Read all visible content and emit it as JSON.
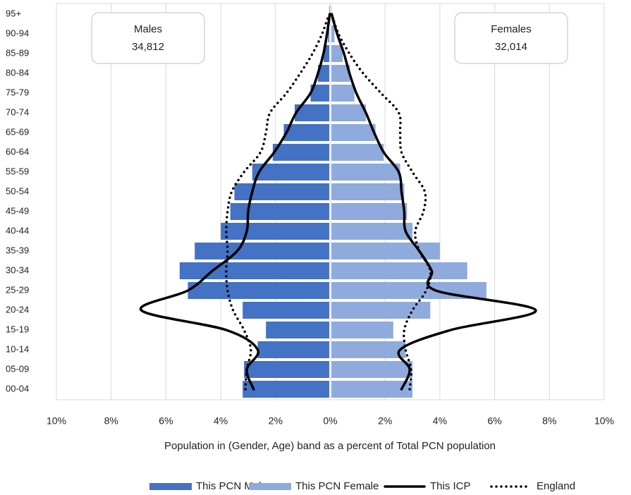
{
  "chart_data": {
    "type": "pyramid",
    "xlabel": "Population in (Gender, Age) band as a percent of Total PCN population",
    "categories": [
      "00-04",
      "05-09",
      "10-14",
      "15-19",
      "20-24",
      "25-29",
      "30-34",
      "35-39",
      "40-44",
      "45-49",
      "50-54",
      "55-59",
      "60-64",
      "65-69",
      "70-74",
      "75-79",
      "80-84",
      "85-89",
      "90-94",
      "95+"
    ],
    "series": [
      {
        "name": "This PCN Male",
        "kind": "bar",
        "color": "#4472c4",
        "values": [
          -3.2,
          -3.15,
          -2.65,
          -2.35,
          -3.2,
          -5.2,
          -5.5,
          -4.95,
          -4.0,
          -3.65,
          -3.5,
          -2.85,
          -2.1,
          -1.7,
          -1.3,
          -0.72,
          -0.45,
          -0.25,
          -0.08,
          -0.02
        ]
      },
      {
        "name": "This PCN Female",
        "kind": "bar",
        "color": "#8faadc",
        "values": [
          3.0,
          3.0,
          2.75,
          2.3,
          3.65,
          5.7,
          5.0,
          4.0,
          3.0,
          2.8,
          2.7,
          2.55,
          1.95,
          1.65,
          1.3,
          0.88,
          0.72,
          0.45,
          0.15,
          0.05
        ]
      },
      {
        "name": "This ICP",
        "kind": "line",
        "color": "#000000",
        "dash": "solid",
        "values": [
          -2.8,
          -3.05,
          -2.65,
          -3.8,
          -6.9,
          -5.2,
          -4.3,
          -3.4,
          -3.05,
          -3.0,
          -2.85,
          -2.6,
          -2.05,
          -1.6,
          -1.25,
          -0.72,
          -0.45,
          -0.25,
          -0.12,
          -0.02
        ],
        "values_right": [
          2.6,
          2.9,
          2.55,
          4.4,
          7.5,
          3.85,
          3.7,
          3.25,
          2.75,
          2.7,
          2.6,
          2.5,
          1.95,
          1.6,
          1.3,
          0.95,
          0.7,
          0.5,
          0.25,
          0.05
        ]
      },
      {
        "name": "England",
        "kind": "line",
        "color": "#000000",
        "dash": "dotted",
        "values": [
          -3.1,
          -3.05,
          -2.9,
          -3.15,
          -3.55,
          -3.75,
          -3.8,
          -3.75,
          -3.8,
          -3.75,
          -3.6,
          -3.15,
          -2.55,
          -2.35,
          -2.2,
          -1.6,
          -1.1,
          -0.65,
          -0.3,
          -0.05
        ],
        "values_right": [
          2.9,
          2.95,
          2.75,
          2.7,
          3.0,
          3.5,
          3.65,
          3.25,
          3.1,
          3.4,
          3.45,
          3.0,
          2.6,
          2.55,
          2.5,
          1.85,
          1.2,
          0.7,
          0.3,
          0.05
        ]
      }
    ],
    "xlim": [
      -10,
      10
    ],
    "xticks": [
      {
        "value": -10,
        "label": "10%"
      },
      {
        "value": -8,
        "label": "8%"
      },
      {
        "value": -6,
        "label": "6%"
      },
      {
        "value": -4,
        "label": "4%"
      },
      {
        "value": -2,
        "label": "2%"
      },
      {
        "value": 0,
        "label": "0%"
      },
      {
        "value": 2,
        "label": "2%"
      },
      {
        "value": 4,
        "label": "4%"
      },
      {
        "value": 6,
        "label": "6%"
      },
      {
        "value": 8,
        "label": "8%"
      },
      {
        "value": 10,
        "label": "10%"
      }
    ],
    "grid": true,
    "legend": "bottom",
    "annotations": [
      {
        "label": "Males",
        "total": "34,812"
      },
      {
        "label": "Females",
        "total": "32,014"
      }
    ]
  }
}
